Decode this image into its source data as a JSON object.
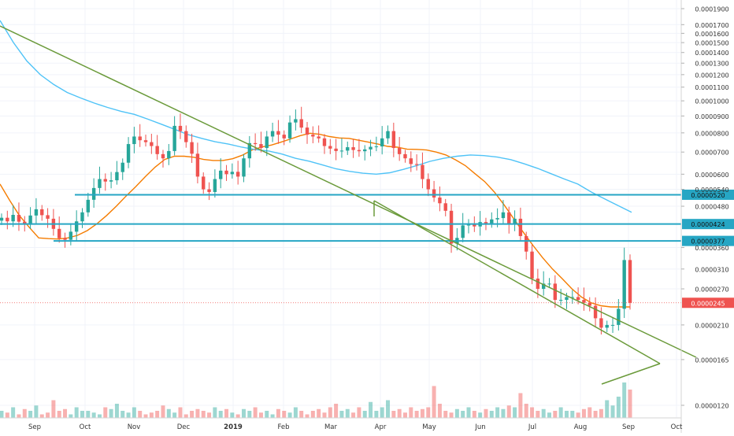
{
  "chart_data": {
    "type": "candlestick",
    "title": "",
    "xlabel": "",
    "ylabel": "",
    "y_scale": "log",
    "grid": true,
    "legend": "none",
    "colors": {
      "up": "#26a69a",
      "down": "#ef5350",
      "ma_short": "#f57c00",
      "ma_long": "#4fc3f7",
      "trendline": "#6a9a3a",
      "level_line": "#26a6c4",
      "price_line": "#ef5350"
    },
    "x_ticks": [
      "Sep",
      "Oct",
      "Nov",
      "Dec",
      "2019",
      "Feb",
      "Mar",
      "Apr",
      "May",
      "Jun",
      "Jul",
      "Aug",
      "Sep",
      "Oct"
    ],
    "y_ticks": [
      "0.0001900",
      "0.0001700",
      "0.0001600",
      "0.0001500",
      "0.0001400",
      "0.0001300",
      "0.0001200",
      "0.0001100",
      "0.0001000",
      "0.0000900",
      "0.0000800",
      "0.0000700",
      "0.0000600",
      "0.0000540",
      "0.0000480",
      "0.0000360",
      "0.0000310",
      "0.0000270",
      "0.0000210",
      "0.0000165",
      "0.0000120"
    ],
    "price_levels": [
      {
        "label": "0.0000520",
        "value": 5.2e-05
      },
      {
        "label": "0.0000424",
        "value": 4.24e-05
      },
      {
        "label": "0.0000377",
        "value": 3.77e-05
      }
    ],
    "current_price": {
      "label": "0.0000245",
      "value": 2.45e-05
    },
    "close_series": [
      4.43e-05,
      4.32e-05,
      4.52e-05,
      4.31e-05,
      4.22e-05,
      4.5e-05,
      4.7e-05,
      4.51e-05,
      4.4e-05,
      4.1e-05,
      3.84e-05,
      3.8e-05,
      4.02e-05,
      4.32e-05,
      4.6e-05,
      5.02e-05,
      5.45e-05,
      5.8e-05,
      5.7e-05,
      5.75e-05,
      6.09e-05,
      6.5e-05,
      7.4e-05,
      7.8e-05,
      7.6e-05,
      7.5e-05,
      7.3e-05,
      6.9e-05,
      6.7e-05,
      7.05e-05,
      8.4e-05,
      8.1e-05,
      7.5e-05,
      6.92e-05,
      5.9e-05,
      5.4e-05,
      5.3e-05,
      5.8e-05,
      6.15e-05,
      6e-05,
      6.1e-05,
      5.9e-05,
      6.7e-05,
      7.45e-05,
      7.4e-05,
      7.2e-05,
      7.8e-05,
      8.1e-05,
      7.9e-05,
      7.7e-05,
      8.6e-05,
      8.8e-05,
      8.3e-05,
      7.9e-05,
      7.8e-05,
      7.7e-05,
      7.3e-05,
      7.17e-05,
      7.05e-05,
      7.07e-05,
      7.24e-05,
      7.1e-05,
      7.04e-05,
      7.13e-05,
      7.26e-05,
      7.28e-05,
      7.7e-05,
      8.1e-05,
      7.2e-05,
      6.9e-05,
      6.7e-05,
      6.44e-05,
      6.4e-05,
      5.8e-05,
      5.4e-05,
      5.1e-05,
      4.9e-05,
      4.65e-05,
      3.7e-05,
      3.85e-05,
      4.2e-05,
      4.22e-05,
      4.17e-05,
      4.3e-05,
      4.26e-05,
      4.38e-05,
      4.42e-05,
      4.6e-05,
      4.23e-05,
      4.4e-05,
      3.9e-05,
      3.5e-05,
      2.9e-05,
      2.7e-05,
      2.8e-05,
      2.8e-05,
      2.5e-05,
      2.5e-05,
      2.55e-05,
      2.55e-05,
      2.5e-05,
      2.45e-05,
      2.4e-05,
      2.2e-05,
      2.06e-05,
      2.1e-05,
      2.1e-05,
      2.35e-05,
      3.3e-05,
      2.45e-05
    ],
    "ma_short_series": [
      5.6e-05,
      5e-05,
      4.5e-05,
      4.15e-05,
      3.85e-05,
      3.83e-05,
      3.82e-05,
      3.85e-05,
      3.92e-05,
      4.05e-05,
      4.25e-05,
      4.5e-05,
      4.8e-05,
      5.15e-05,
      5.5e-05,
      5.9e-05,
      6.3e-05,
      6.65e-05,
      6.8e-05,
      6.8e-05,
      6.75e-05,
      6.65e-05,
      6.6e-05,
      6.6e-05,
      6.68e-05,
      6.85e-05,
      7.1e-05,
      7.25e-05,
      7.35e-05,
      7.5e-05,
      7.67e-05,
      7.85e-05,
      7.98e-05,
      7.92e-05,
      7.8e-05,
      7.72e-05,
      7.7e-05,
      7.6e-05,
      7.5e-05,
      7.4e-05,
      7.28e-05,
      7.24e-05,
      7.14e-05,
      7.13e-05,
      7.1e-05,
      7e-05,
      6.86e-05,
      6.63e-05,
      6.37e-05,
      6.02e-05,
      5.7e-05,
      5.3e-05,
      4.85e-05,
      4.4e-05,
      4e-05,
      3.65e-05,
      3.35e-05,
      3.1e-05,
      2.9e-05,
      2.7e-05,
      2.55e-05,
      2.45e-05,
      2.4e-05,
      2.38e-05,
      2.38e-05,
      2.38e-05
    ],
    "ma_long_series": [
      0.000175,
      0.00015,
      0.000132,
      0.00012,
      0.000112,
      0.000106,
      0.000102,
      9.85e-05,
      9.55e-05,
      9.3e-05,
      9.1e-05,
      8.8e-05,
      8.5e-05,
      8.2e-05,
      7.9e-05,
      7.7e-05,
      7.52e-05,
      7.4e-05,
      7.24e-05,
      7.12e-05,
      7.05e-05,
      6.9e-05,
      6.7e-05,
      6.57e-05,
      6.4e-05,
      6.23e-05,
      6.12e-05,
      6.04e-05,
      6e-05,
      6.06e-05,
      6.2e-05,
      6.37e-05,
      6.56e-05,
      6.7e-05,
      6.8e-05,
      6.86e-05,
      6.83e-05,
      6.76e-05,
      6.64e-05,
      6.45e-05,
      6.25e-05,
      6.02e-05,
      5.8e-05,
      5.6e-05,
      5.3e-05,
      5.05e-05,
      4.82e-05,
      4.6e-05
    ],
    "volume_series": [
      0.2,
      0.15,
      0.3,
      0.1,
      0.25,
      0.2,
      0.35,
      0.1,
      0.15,
      0.5,
      0.2,
      0.25,
      0.1,
      0.3,
      0.2,
      0.2,
      0.15,
      0.1,
      0.3,
      0.25,
      0.4,
      0.2,
      0.15,
      0.3,
      0.2,
      0.1,
      0.15,
      0.2,
      0.35,
      0.25,
      0.15,
      0.3,
      0.1,
      0.2,
      0.25,
      0.2,
      0.15,
      0.3,
      0.2,
      0.25,
      0.15,
      0.1,
      0.25,
      0.2,
      0.3,
      0.15,
      0.2,
      0.1,
      0.25,
      0.2,
      0.15,
      0.3,
      0.2,
      0.1,
      0.2,
      0.25,
      0.15,
      0.3,
      0.4,
      0.2,
      0.25,
      0.15,
      0.3,
      0.2,
      0.45,
      0.2,
      0.3,
      0.5,
      0.2,
      0.25,
      0.15,
      0.3,
      0.2,
      0.25,
      0.3,
      0.9,
      0.4,
      0.2,
      0.15,
      0.25,
      0.2,
      0.3,
      0.2,
      0.15,
      0.25,
      0.2,
      0.3,
      0.25,
      0.35,
      0.3,
      0.7,
      0.4,
      0.3,
      0.2,
      0.25,
      0.15,
      0.2,
      0.3,
      0.2,
      0.2,
      0.15,
      0.25,
      0.3,
      0.2,
      0.25,
      0.5,
      0.35,
      0.6,
      1.0,
      0.8
    ]
  }
}
